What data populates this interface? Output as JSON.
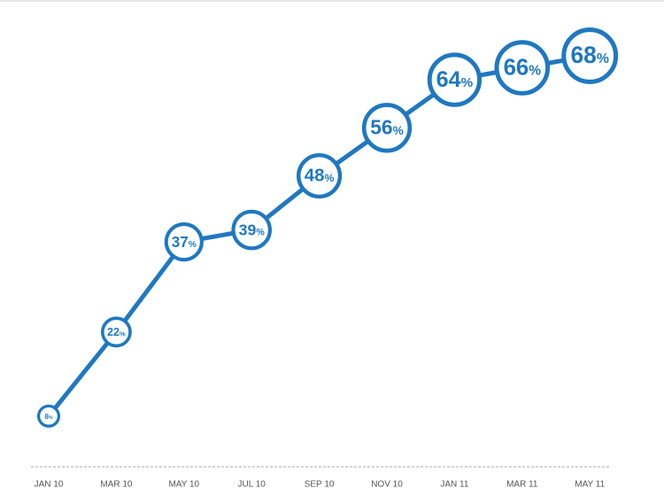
{
  "chart_data": {
    "type": "line",
    "categories": [
      "JAN 10",
      "MAR 10",
      "MAY 10",
      "JUL 10",
      "SEP 10",
      "NOV 10",
      "JAN 11",
      "MAR 11",
      "MAY 11"
    ],
    "values": [
      8,
      22,
      37,
      39,
      48,
      56,
      64,
      66,
      68
    ],
    "value_labels": [
      "8%",
      "22%",
      "37%",
      "39%",
      "48%",
      "56%",
      "64%",
      "66%",
      "68%"
    ],
    "color": "#1f78c1"
  }
}
